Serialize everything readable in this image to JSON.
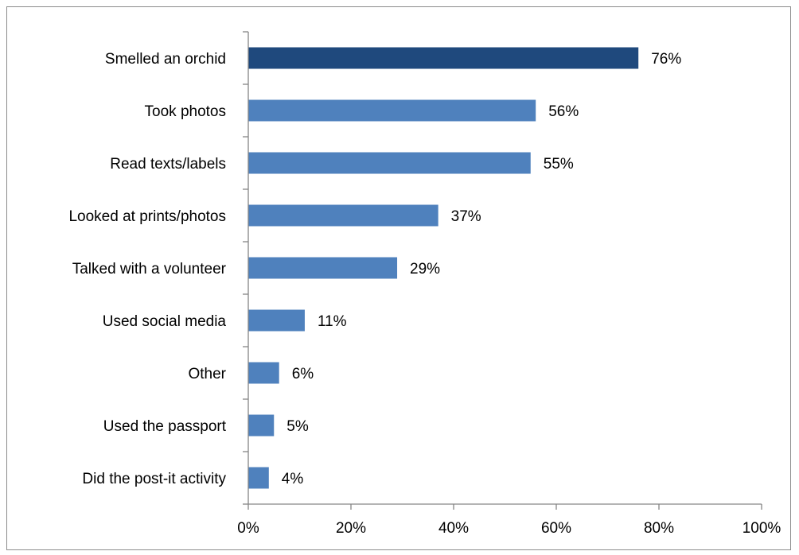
{
  "chart_data": {
    "type": "bar",
    "orientation": "horizontal",
    "categories": [
      "Smelled an orchid",
      "Took photos",
      "Read texts/labels",
      "Looked at prints/photos",
      "Talked with a volunteer",
      "Used social media",
      "Other",
      "Used the passport",
      "Did the post-it activity"
    ],
    "values": [
      76,
      56,
      55,
      37,
      29,
      11,
      6,
      5,
      4
    ],
    "value_labels": [
      "76%",
      "56%",
      "55%",
      "37%",
      "29%",
      "11%",
      "6%",
      "5%",
      "4%"
    ],
    "xlim": [
      0,
      100
    ],
    "x_ticks": [
      0,
      20,
      40,
      60,
      80,
      100
    ],
    "x_tick_labels": [
      "0%",
      "20%",
      "40%",
      "60%",
      "80%",
      "100%"
    ],
    "grid": false,
    "legend": false,
    "colors": {
      "highlight_bar": "#1f497d",
      "bar": "#4f81bd",
      "axis": "#868686"
    },
    "highlight_index": 0
  }
}
